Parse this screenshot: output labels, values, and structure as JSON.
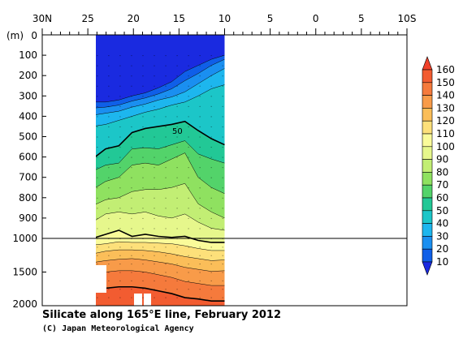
{
  "chart_data": {
    "type": "heatmap",
    "title": "Silicate along 165°E line, February 2012",
    "credit": "(C) Japan Meteorological Agency",
    "y_unit_label": "(m)",
    "x_tick_labels": [
      "30N",
      "25",
      "20",
      "15",
      "10",
      "5",
      "0",
      "5",
      "10S"
    ],
    "x_ticks_lat": [
      30,
      25,
      20,
      15,
      10,
      5,
      0,
      -5,
      -10
    ],
    "x_data_range_lat": [
      24.5,
      10
    ],
    "y_tick_labels_upper": [
      "0",
      "100",
      "200",
      "300",
      "400",
      "500",
      "600",
      "700",
      "800",
      "900",
      "1000"
    ],
    "y_tick_labels_lower": [
      "1500",
      "2000"
    ],
    "y_axis_break_depth": 1000,
    "contour_label": "50",
    "colorbar": {
      "levels": [
        "160",
        "150",
        "140",
        "130",
        "120",
        "110",
        "100",
        "90",
        "80",
        "70",
        "60",
        "50",
        "40",
        "30",
        "20",
        "10"
      ],
      "colors": [
        "#f0412a",
        "#f25c31",
        "#f57a3c",
        "#f89b49",
        "#fbbe59",
        "#fde07a",
        "#fafb9a",
        "#e6f78c",
        "#c2ee74",
        "#8fe160",
        "#53d36a",
        "#22c896",
        "#1cc6c8",
        "#1db6ee",
        "#1a8ff0",
        "#0f5fe8",
        "#1a2ae0"
      ]
    },
    "isolines": [
      {
        "level": 10,
        "depth": [
          330,
          330,
          320,
          300,
          285,
          260,
          230,
          180,
          150,
          120,
          100
        ]
      },
      {
        "level": 20,
        "depth": [
          360,
          355,
          345,
          325,
          310,
          290,
          265,
          225,
          190,
          150,
          120
        ]
      },
      {
        "level": 30,
        "depth": [
          395,
          385,
          375,
          355,
          340,
          320,
          305,
          280,
          240,
          200,
          165
        ]
      },
      {
        "level": 40,
        "depth": [
          450,
          440,
          420,
          400,
          380,
          365,
          345,
          330,
          300,
          265,
          245
        ]
      },
      {
        "level": 50,
        "depth": [
          610,
          560,
          545,
          480,
          460,
          450,
          440,
          425,
          470,
          510,
          540
        ]
      },
      {
        "level": 60,
        "depth": [
          670,
          640,
          630,
          560,
          555,
          560,
          540,
          520,
          585,
          610,
          630
        ]
      },
      {
        "level": 70,
        "depth": [
          760,
          720,
          700,
          640,
          630,
          640,
          610,
          580,
          700,
          750,
          780
        ]
      },
      {
        "level": 80,
        "depth": [
          840,
          810,
          800,
          770,
          760,
          760,
          750,
          730,
          830,
          870,
          900
        ]
      },
      {
        "level": 90,
        "depth": [
          920,
          880,
          870,
          880,
          870,
          890,
          900,
          880,
          920,
          950,
          960
        ]
      },
      {
        "level": 100,
        "depth": [
          1000,
          980,
          960,
          990,
          980,
          990,
          995,
          990,
          1030,
          1060,
          1060
        ]
      },
      {
        "level": 110,
        "depth": [
          1100,
          1080,
          1050,
          1060,
          1060,
          1070,
          1080,
          1110,
          1150,
          1180,
          1180
        ]
      },
      {
        "level": 120,
        "depth": [
          1230,
          1190,
          1170,
          1170,
          1180,
          1200,
          1230,
          1270,
          1300,
          1330,
          1320
        ]
      },
      {
        "level": 130,
        "depth": [
          1360,
          1330,
          1310,
          1300,
          1320,
          1350,
          1380,
          1430,
          1460,
          1490,
          1480
        ]
      },
      {
        "level": 140,
        "depth": [
          1520,
          1500,
          1480,
          1480,
          1500,
          1540,
          1580,
          1640,
          1670,
          1700,
          1700
        ]
      },
      {
        "level": 150,
        "depth": [
          1760,
          1740,
          1720,
          1720,
          1740,
          1780,
          1820,
          1880,
          1900,
          1930,
          1930
        ]
      }
    ]
  }
}
